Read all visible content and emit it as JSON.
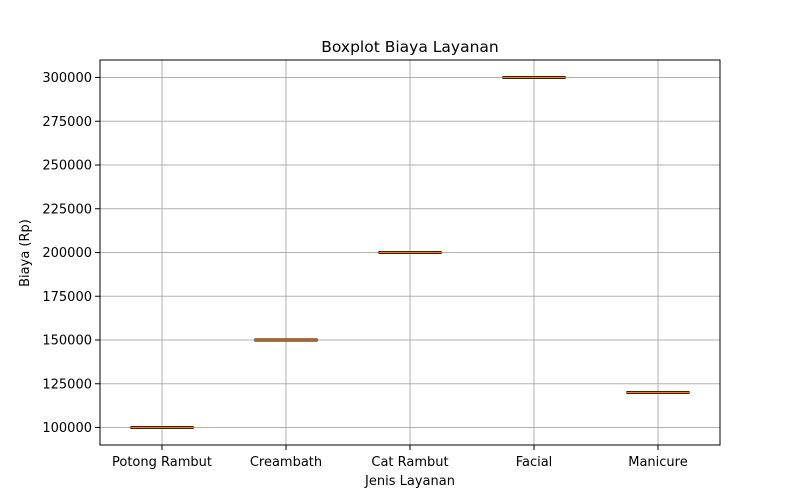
{
  "chart_data": {
    "type": "boxplot",
    "title": "Boxplot Biaya Layanan",
    "xlabel": "Jenis Layanan",
    "ylabel": "Biaya (Rp)",
    "categories": [
      "Potong Rambut",
      "Creambath",
      "Cat Rambut",
      "Facial",
      "Manicure"
    ],
    "values": [
      100000,
      150000,
      200000,
      300000,
      120000
    ],
    "ylim": [
      90000,
      310000
    ],
    "yticks": [
      100000,
      125000,
      150000,
      175000,
      200000,
      225000,
      250000,
      275000,
      300000
    ],
    "ytick_labels": [
      "100000",
      "125000",
      "150000",
      "175000",
      "200000",
      "225000",
      "250000",
      "275000",
      "300000"
    ],
    "grid": true,
    "colors": {
      "median": "#ff7f0e",
      "box": "#000000",
      "grid": "#b0b0b0"
    }
  }
}
